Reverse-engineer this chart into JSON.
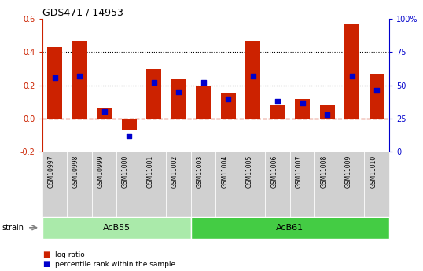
{
  "title": "GDS471 / 14953",
  "samples": [
    "GSM10997",
    "GSM10998",
    "GSM10999",
    "GSM11000",
    "GSM11001",
    "GSM11002",
    "GSM11003",
    "GSM11004",
    "GSM11005",
    "GSM11006",
    "GSM11007",
    "GSM11008",
    "GSM11009",
    "GSM11010"
  ],
  "log_ratio": [
    0.43,
    0.47,
    0.06,
    -0.07,
    0.3,
    0.24,
    0.2,
    0.15,
    0.47,
    0.08,
    0.12,
    0.08,
    0.57,
    0.27
  ],
  "percentile": [
    56,
    57,
    30,
    12,
    52,
    45,
    52,
    40,
    57,
    38,
    37,
    28,
    57,
    46
  ],
  "groups": [
    {
      "label": "AcB55",
      "start": 0,
      "end": 5,
      "color": "#aaeaaa"
    },
    {
      "label": "AcB61",
      "start": 6,
      "end": 13,
      "color": "#44cc44"
    }
  ],
  "bar_color": "#cc2200",
  "scatter_color": "#0000cc",
  "ylim_left": [
    -0.2,
    0.6
  ],
  "ylim_right": [
    0,
    100
  ],
  "yticks_left": [
    -0.2,
    0.0,
    0.2,
    0.4,
    0.6
  ],
  "yticks_right": [
    0,
    25,
    50,
    75,
    100
  ],
  "hline_y_left": [
    0.2,
    0.4
  ],
  "zero_line_color": "#cc2200",
  "dotted_line_color": "#000000",
  "background_color": "#ffffff",
  "tick_label_color_left": "#cc2200",
  "tick_label_color_right": "#0000cc",
  "strain_label": "strain",
  "legend_bar_label": "log ratio",
  "legend_scatter_label": "percentile rank within the sample",
  "group_label_color": "#000000",
  "sample_bg": "#d0d0d0"
}
